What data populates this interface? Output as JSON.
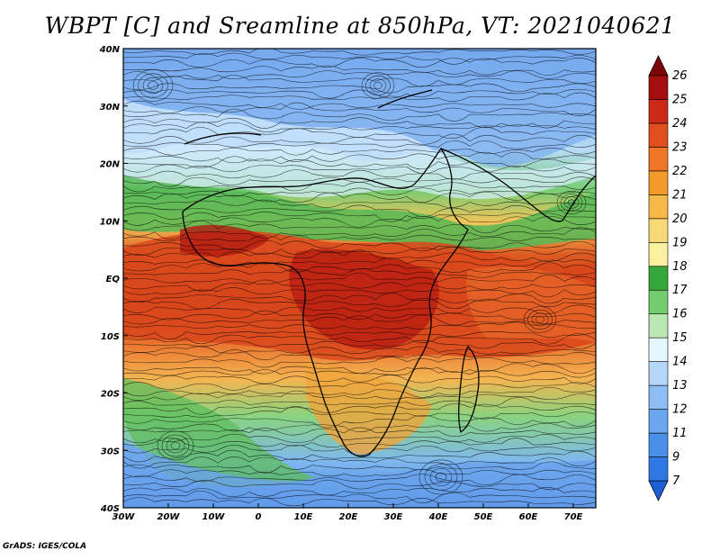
{
  "title": "WBPT [C] and Sreamline at 850hPa, VT: 2021040621",
  "credit": "GrADS: IGES/COLA",
  "map": {
    "lon_labels": [
      "30W",
      "20W",
      "10W",
      "0",
      "10E",
      "20E",
      "30E",
      "40E",
      "50E",
      "60E",
      "70E"
    ],
    "lat_labels": [
      "40N",
      "30N",
      "20N",
      "10N",
      "EQ",
      "10S",
      "20S",
      "30S",
      "40S"
    ]
  },
  "colorbar": {
    "levels": [
      "7",
      "9",
      "11",
      "12",
      "13",
      "14",
      "15",
      "16",
      "17",
      "18",
      "19",
      "20",
      "21",
      "22",
      "23",
      "24",
      "25",
      "26"
    ],
    "colors": [
      "#1f5fd6",
      "#2f78e3",
      "#4a90ea",
      "#6aa6ef",
      "#8dbdf3",
      "#b4d6f8",
      "#e6f6ff",
      "#b9e8b2",
      "#73cc6d",
      "#36a83a",
      "#fbf0a0",
      "#f9d877",
      "#f6b847",
      "#f29a2a",
      "#ee7626",
      "#e24f1e",
      "#cc2a16",
      "#a40e0e",
      "#7a0606"
    ]
  }
}
